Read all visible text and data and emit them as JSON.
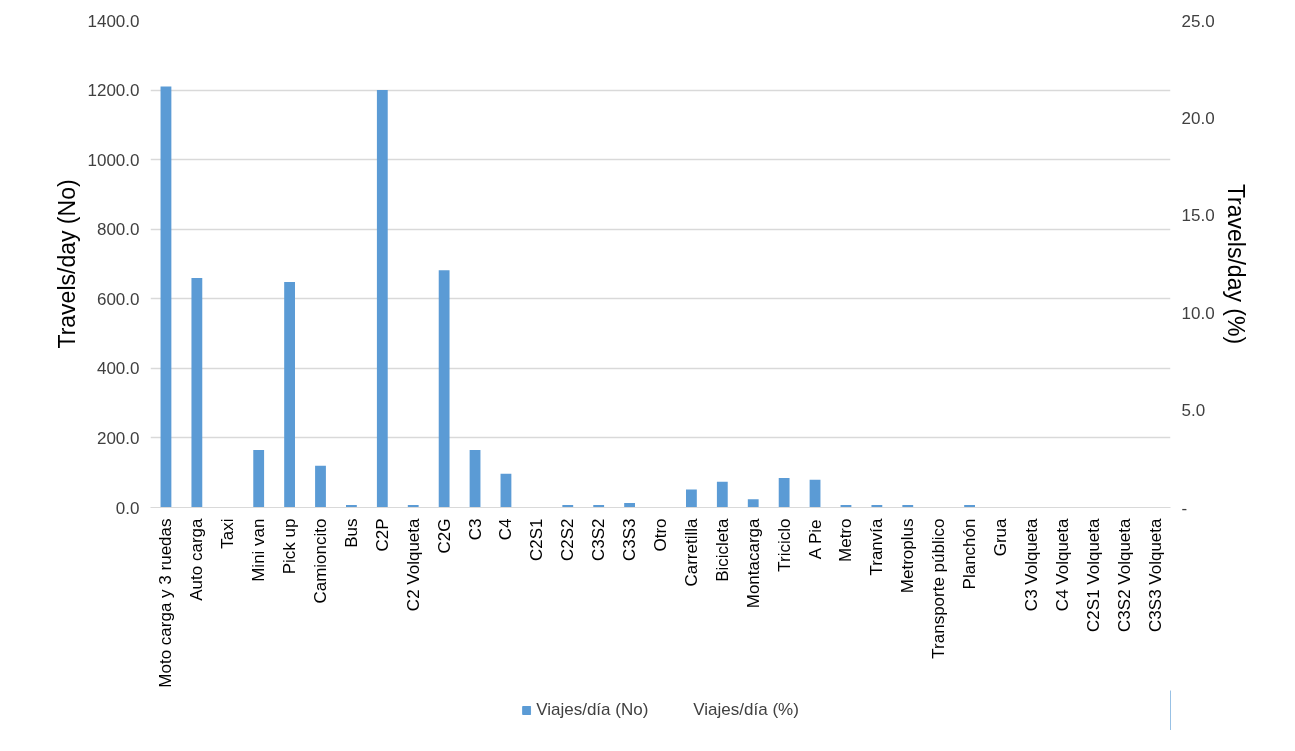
{
  "chart_data": {
    "type": "bar",
    "categories": [
      "Moto carga y 3 ruedas",
      "Auto carga",
      "Taxi",
      "Mini van",
      "Pick up",
      "Camioncito",
      "Bus",
      "C2P",
      "C2 Volqueta",
      "C2G",
      "C3",
      "C4",
      "C2S1",
      "C2S2",
      "C3S2",
      "C3S3",
      "Otro",
      "Carretilla",
      "Bicicleta",
      "Montacarga",
      "Triciclo",
      "A Pie",
      "Metro",
      "Tranvía",
      "Metroplus",
      "Transporte público",
      "Planchón",
      "Grua",
      "C3 Volqueta",
      "C4 Volqueta",
      "C2S1 Volqueta",
      "C3S2 Volqueta",
      "C3S3 Volqueta"
    ],
    "series": [
      {
        "name": "Viajes/día (No)",
        "color": "#5b9bd5",
        "values": [
          1210,
          660,
          0,
          165,
          648,
          120,
          7,
          1200,
          7,
          682,
          165,
          97,
          0,
          7,
          7,
          13,
          0,
          52,
          74,
          24,
          85,
          80,
          7,
          7,
          7,
          0,
          7,
          0,
          0,
          0,
          0,
          0,
          0
        ]
      },
      {
        "name": "Viajes/día (%)",
        "type": "line",
        "values": [
          null,
          null,
          null,
          null,
          null,
          null,
          null,
          null,
          null,
          null,
          null,
          null,
          null,
          null,
          null,
          null,
          null,
          null,
          null,
          null,
          null,
          null,
          null,
          null,
          null,
          null,
          null,
          null,
          null,
          null,
          null,
          null,
          null
        ]
      }
    ],
    "ylabel": "Travels/day (No)",
    "y2label": "Travels/day (%)",
    "ylim": [
      0,
      1400
    ],
    "yticks": [
      {
        "value": 0,
        "label": "0.0"
      },
      {
        "value": 200,
        "label": "200.0"
      },
      {
        "value": 400,
        "label": "400.0"
      },
      {
        "value": 600,
        "label": "600.0"
      },
      {
        "value": 800,
        "label": "800.0"
      },
      {
        "value": 1000,
        "label": "1000.0"
      },
      {
        "value": 1200,
        "label": "1200.0"
      },
      {
        "value": 1400,
        "label": "1400.0"
      }
    ],
    "y2lim": [
      0,
      25
    ],
    "y2ticks": [
      {
        "value": 0,
        "label": "-"
      },
      {
        "value": 5,
        "label": "5.0"
      },
      {
        "value": 10,
        "label": "10.0"
      },
      {
        "value": 15,
        "label": "15.0"
      },
      {
        "value": 20,
        "label": "20.0"
      },
      {
        "value": 25,
        "label": "25.0"
      }
    ],
    "grid": "y",
    "legend": "bottom"
  }
}
